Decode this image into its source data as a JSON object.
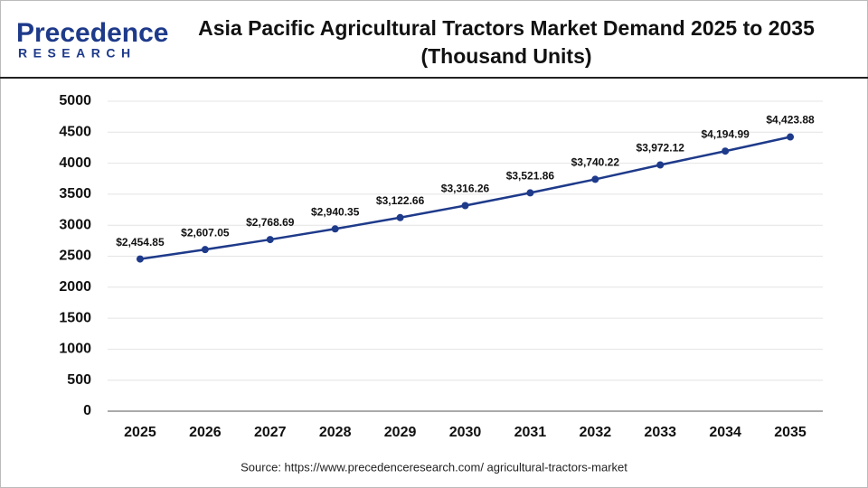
{
  "logo": {
    "name": "Precedence",
    "tagline": "RESEARCH"
  },
  "chart_data": {
    "type": "line",
    "title": "Asia Pacific Agricultural Tractors Market Demand 2025 to 2035 (Thousand Units)",
    "source": "Source: https://www.precedenceresearch.com/ agricultural-tractors-market",
    "categories": [
      "2025",
      "2026",
      "2027",
      "2028",
      "2029",
      "2030",
      "2031",
      "2032",
      "2033",
      "2034",
      "2035"
    ],
    "series": [
      {
        "color": "#1e3a8a",
        "values": [
          2454.85,
          2607.05,
          2768.69,
          2940.35,
          3122.66,
          3316.26,
          3521.86,
          3740.22,
          3972.12,
          4194.99,
          4423.88
        ],
        "value_labels": [
          "$2,454.85",
          "$2,607.05",
          "$2,768.69",
          "$2,940.35",
          "$3,122.66",
          "$3,316.26",
          "$3,521.86",
          "$3,740.22",
          "$3,972.12",
          "$4,194.99",
          "$4,423.88"
        ]
      }
    ],
    "ylim": [
      0,
      5000
    ],
    "yticks": [
      0,
      500,
      1000,
      1500,
      2000,
      2500,
      3000,
      3500,
      4000,
      4500,
      5000
    ],
    "grid": true
  }
}
